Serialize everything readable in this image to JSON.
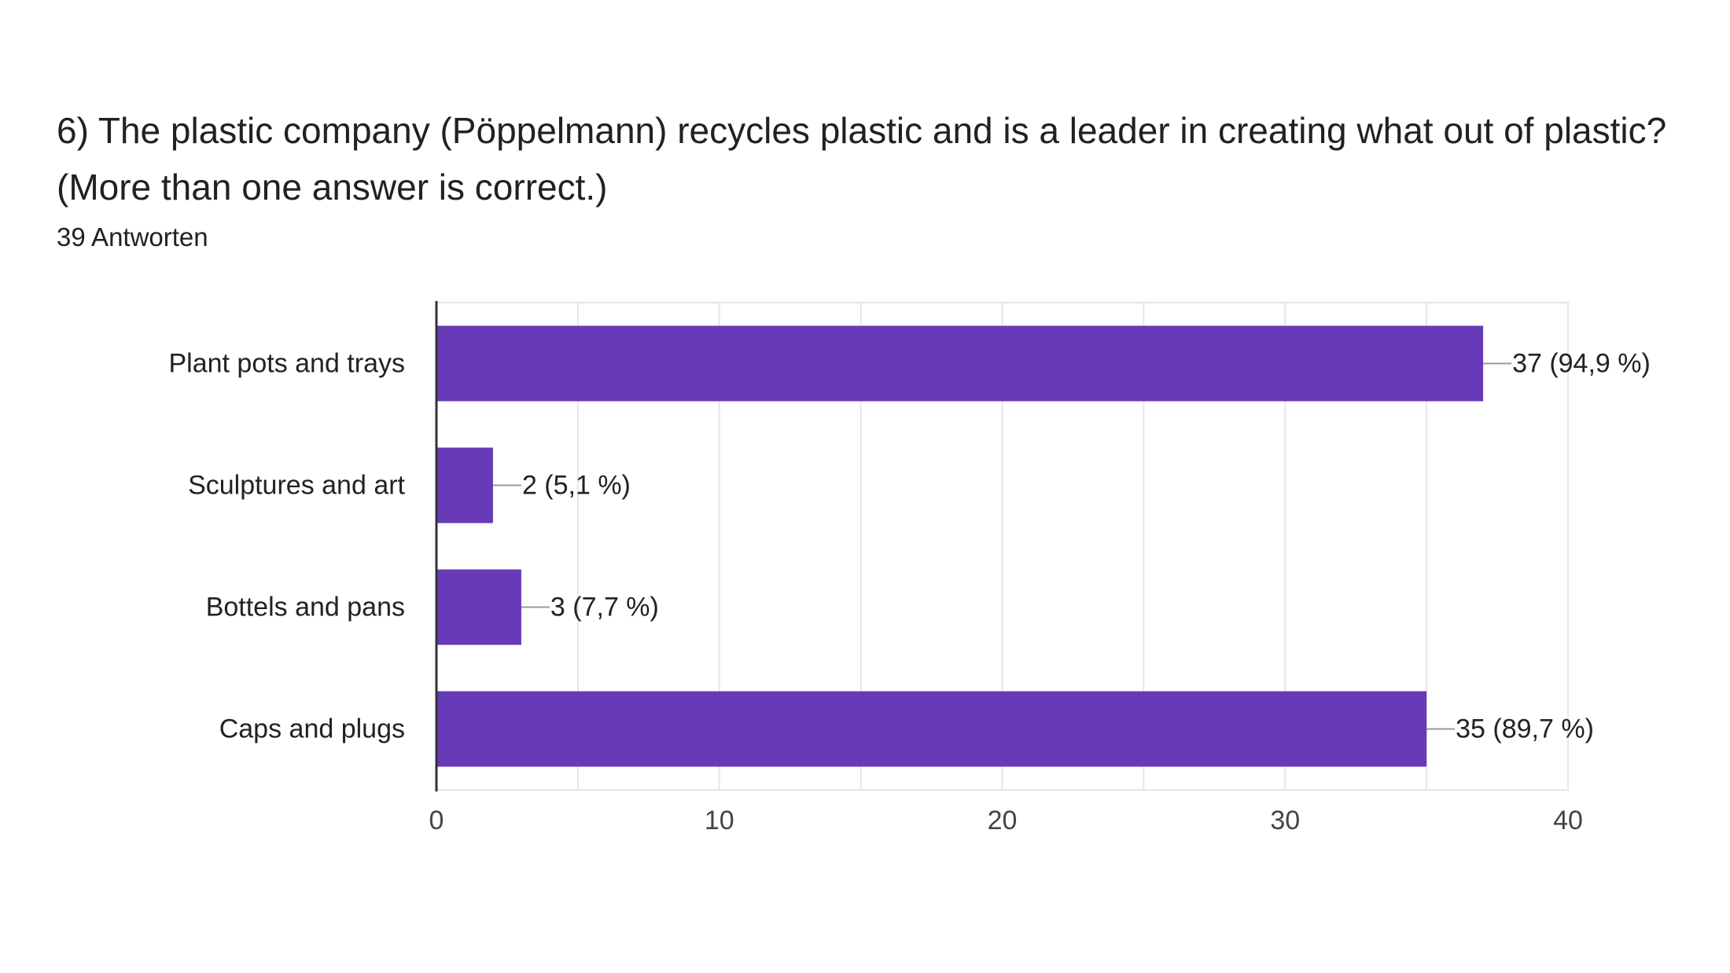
{
  "question": {
    "title": "6) The plastic company (Pöppelmann) recycles plastic and is a leader in creating what out of plastic? (More than one answer is correct.)",
    "response_count": "39 Antworten"
  },
  "colors": {
    "bar": "#673ab7",
    "grid": "#e6e6e6",
    "axis": "#333333",
    "leader": "#999999"
  },
  "chart_data": {
    "type": "bar",
    "orientation": "horizontal",
    "categories": [
      "Plant pots and trays",
      "Sculptures and art",
      "Bottels and pans",
      "Caps and plugs"
    ],
    "values": [
      37,
      2,
      3,
      35
    ],
    "data_labels": [
      "37 (94,9 %)",
      "2 (5,1 %)",
      "3 (7,7 %)",
      "35 (89,7 %)"
    ],
    "xlim": [
      0,
      40
    ],
    "xticks": [
      0,
      10,
      20,
      30,
      40
    ],
    "xtick_labels": [
      "0",
      "10",
      "20",
      "30",
      "40"
    ],
    "grid": true,
    "legend": "none"
  }
}
